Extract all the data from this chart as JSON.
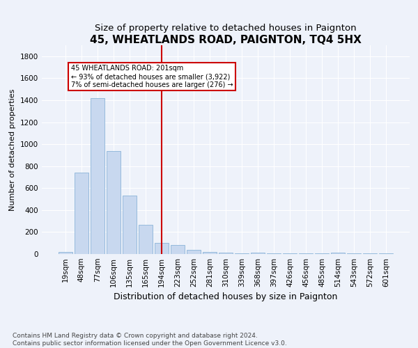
{
  "title": "45, WHEATLANDS ROAD, PAIGNTON, TQ4 5HX",
  "subtitle": "Size of property relative to detached houses in Paignton",
  "xlabel": "Distribution of detached houses by size in Paignton",
  "ylabel": "Number of detached properties",
  "categories": [
    "19sqm",
    "48sqm",
    "77sqm",
    "106sqm",
    "135sqm",
    "165sqm",
    "194sqm",
    "223sqm",
    "252sqm",
    "281sqm",
    "310sqm",
    "339sqm",
    "368sqm",
    "397sqm",
    "426sqm",
    "456sqm",
    "485sqm",
    "514sqm",
    "543sqm",
    "572sqm",
    "601sqm"
  ],
  "values": [
    20,
    740,
    1420,
    940,
    530,
    265,
    100,
    85,
    35,
    20,
    15,
    5,
    15,
    5,
    5,
    5,
    5,
    15,
    5,
    5,
    5
  ],
  "bar_color": "#c8d8ef",
  "bar_edge_color": "#8ab4d8",
  "highlight_bar_index": 6,
  "highlight_line_color": "#cc0000",
  "annotation_text": "45 WHEATLANDS ROAD: 201sqm\n← 93% of detached houses are smaller (3,922)\n7% of semi-detached houses are larger (276) →",
  "annotation_box_color": "#cc0000",
  "ylim": [
    0,
    1900
  ],
  "yticks": [
    0,
    200,
    400,
    600,
    800,
    1000,
    1200,
    1400,
    1600,
    1800
  ],
  "footer": "Contains HM Land Registry data © Crown copyright and database right 2024.\nContains public sector information licensed under the Open Government Licence v3.0.",
  "title_fontsize": 11,
  "subtitle_fontsize": 9.5,
  "xlabel_fontsize": 9,
  "ylabel_fontsize": 8,
  "tick_fontsize": 7.5,
  "footer_fontsize": 6.5,
  "background_color": "#eef2fa",
  "plot_background_color": "#eef2fa"
}
